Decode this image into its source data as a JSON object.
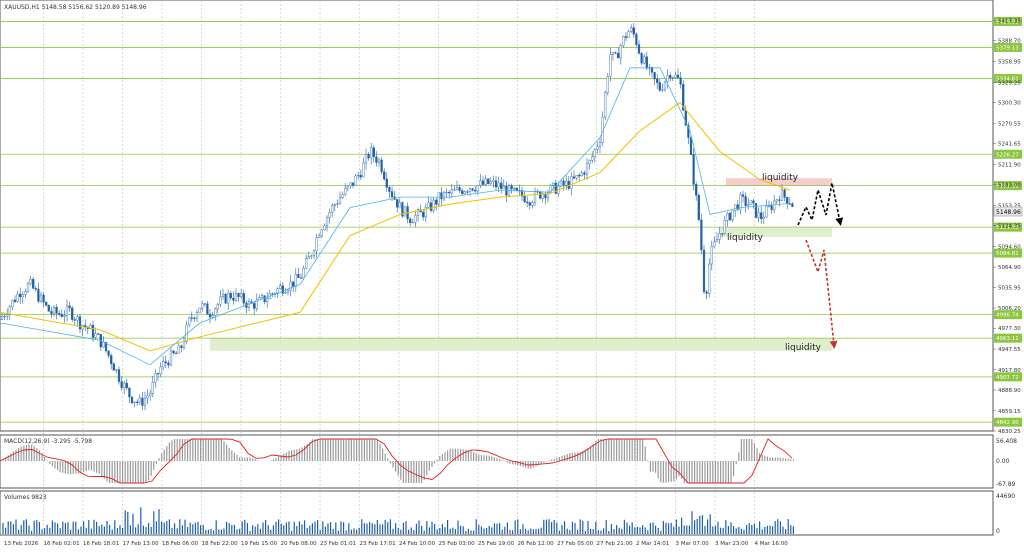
{
  "symbol_header": "XAUUSD,H1  5148.58 5156.62 5120.89 5148.96",
  "current_price_label": "5148.96",
  "annotations": {
    "liquidity_top": "liquidity",
    "liquidity_mid": "liquidity",
    "liquidity_bottom": "liquidity"
  },
  "macd": {
    "header": "MACD(12,26,9) -3.295 -5.798",
    "scale_labels": [
      "56.408",
      "0.00",
      "-67.89"
    ]
  },
  "volumes": {
    "header": "Volumes 9823",
    "scale_labels": [
      "44690",
      "0"
    ]
  },
  "colors": {
    "bull_candle": "#1f5fa8",
    "bear_candle": "#1f5fa8",
    "ma_fast": "#4fb3e8",
    "ma_slow": "#f0c000",
    "level_line": "#8cc63f",
    "level_zone": "#d9ecc4",
    "resistance_zone": "#f2c4c4",
    "macd_signal": "#e02020",
    "macd_hist": "#9a9a9a",
    "volume_bars": "#1f5fa8",
    "arrow_black": "#000000",
    "arrow_red": "#c0392b"
  },
  "chart_data": [
    {
      "type": "candlestick",
      "title": "",
      "x_tick_labels": [
        "13 Feb 2026",
        "16 Feb 02:01",
        "16 Feb 18:01",
        "17 Feb 13:00",
        "18 Feb 06:00",
        "18 Feb 22:00",
        "19 Feb 15:00",
        "20 Feb 08:00",
        "23 Feb 01:01",
        "23 Feb 17:01",
        "24 Feb 10:00",
        "25 Feb 03:00",
        "25 Feb 19:00",
        "26 Feb 12:00",
        "27 Feb 05:00",
        "27 Feb 21:00",
        "2 Mar 14:01",
        "3 Mar 07:00",
        "3 Mar 23:00",
        "4 Mar 16:00"
      ],
      "y_tick_labels": [
        "5417.35",
        "5388.70",
        "5358.95",
        "5329.25",
        "5300.30",
        "5270.55",
        "5241.65",
        "5211.90",
        "5183.00",
        "5153.25",
        "5124.35",
        "5094.60",
        "5064.90",
        "5035.95",
        "5006.20",
        "4977.30",
        "4947.55",
        "4917.80",
        "4888.90",
        "4859.15",
        "4830.25"
      ],
      "ylim": [
        4830.25,
        5447.0
      ],
      "horizontal_levels": [
        5416.33,
        5379.13,
        5334.61,
        5226.27,
        5181.38,
        5121.98,
        5084.81,
        4996.74,
        4963.11,
        4907.72,
        4842.9
      ],
      "horizontal_level_labels": [
        "5416.33",
        "5379.13",
        "5334.61",
        "5226.27",
        "5181.38",
        "5121.98",
        "5084.81",
        "4996.74",
        "4963.11",
        "4907.72",
        "4842.90"
      ],
      "zones": [
        {
          "label": "liquidity",
          "low": 5181.38,
          "high": 5192.0,
          "kind": "resistance"
        },
        {
          "label": "liquidity",
          "low": 5108.0,
          "high": 5121.98,
          "kind": "support"
        },
        {
          "label": "liquidity",
          "low": 4945.0,
          "high": 4963.11,
          "kind": "support"
        }
      ],
      "close_path": [
        [
          0,
          4990
        ],
        [
          10,
          5010
        ],
        [
          20,
          5030
        ],
        [
          30,
          5040
        ],
        [
          40,
          5020
        ],
        [
          50,
          5000
        ],
        [
          60,
          4998
        ],
        [
          70,
          5002
        ],
        [
          80,
          4985
        ],
        [
          90,
          4975
        ],
        [
          100,
          4960
        ],
        [
          110,
          4935
        ],
        [
          120,
          4905
        ],
        [
          130,
          4880
        ],
        [
          140,
          4870
        ],
        [
          150,
          4885
        ],
        [
          160,
          4920
        ],
        [
          170,
          4935
        ],
        [
          180,
          4945
        ],
        [
          190,
          4990
        ],
        [
          200,
          5010
        ],
        [
          210,
          5000
        ],
        [
          220,
          5015
        ],
        [
          230,
          5025
        ],
        [
          240,
          5020
        ],
        [
          250,
          5010
        ],
        [
          260,
          5015
        ],
        [
          270,
          5025
        ],
        [
          280,
          5035
        ],
        [
          290,
          5040
        ],
        [
          300,
          5050
        ],
        [
          310,
          5080
        ],
        [
          320,
          5120
        ],
        [
          330,
          5145
        ],
        [
          340,
          5165
        ],
        [
          350,
          5180
        ],
        [
          360,
          5200
        ],
        [
          370,
          5230
        ],
        [
          380,
          5215
        ],
        [
          390,
          5175
        ],
        [
          400,
          5150
        ],
        [
          410,
          5135
        ],
        [
          420,
          5140
        ],
        [
          430,
          5150
        ],
        [
          440,
          5165
        ],
        [
          450,
          5170
        ],
        [
          460,
          5175
        ],
        [
          470,
          5180
        ],
        [
          480,
          5182
        ],
        [
          490,
          5185
        ],
        [
          500,
          5180
        ],
        [
          510,
          5172
        ],
        [
          520,
          5168
        ],
        [
          530,
          5162
        ],
        [
          540,
          5170
        ],
        [
          550,
          5175
        ],
        [
          560,
          5180
        ],
        [
          570,
          5185
        ],
        [
          580,
          5195
        ],
        [
          590,
          5215
        ],
        [
          600,
          5250
        ],
        [
          605,
          5310
        ],
        [
          610,
          5370
        ],
        [
          615,
          5360
        ],
        [
          620,
          5380
        ],
        [
          625,
          5395
        ],
        [
          630,
          5405
        ],
        [
          635,
          5395
        ],
        [
          640,
          5370
        ],
        [
          650,
          5340
        ],
        [
          660,
          5320
        ],
        [
          670,
          5345
        ],
        [
          680,
          5330
        ],
        [
          690,
          5230
        ],
        [
          700,
          5120
        ],
        [
          705,
          5015
        ],
        [
          710,
          5080
        ],
        [
          720,
          5115
        ],
        [
          730,
          5140
        ],
        [
          740,
          5160
        ],
        [
          750,
          5155
        ],
        [
          760,
          5135
        ],
        [
          770,
          5150
        ],
        [
          780,
          5170
        ],
        [
          790,
          5160
        ],
        [
          795,
          5148.96
        ]
      ],
      "ma_fast_path": [
        [
          0,
          4985
        ],
        [
          100,
          4960
        ],
        [
          150,
          4925
        ],
        [
          200,
          4985
        ],
        [
          300,
          5040
        ],
        [
          350,
          5150
        ],
        [
          400,
          5165
        ],
        [
          450,
          5165
        ],
        [
          500,
          5175
        ],
        [
          550,
          5172
        ],
        [
          600,
          5250
        ],
        [
          630,
          5350
        ],
        [
          660,
          5350
        ],
        [
          690,
          5260
        ],
        [
          710,
          5140
        ],
        [
          740,
          5150
        ],
        [
          790,
          5156
        ]
      ],
      "ma_slow_path": [
        [
          0,
          5000
        ],
        [
          100,
          4975
        ],
        [
          150,
          4945
        ],
        [
          200,
          4965
        ],
        [
          300,
          5000
        ],
        [
          350,
          5110
        ],
        [
          400,
          5140
        ],
        [
          450,
          5155
        ],
        [
          500,
          5165
        ],
        [
          550,
          5170
        ],
        [
          600,
          5200
        ],
        [
          640,
          5260
        ],
        [
          680,
          5300
        ],
        [
          720,
          5230
        ],
        [
          760,
          5190
        ],
        [
          790,
          5175
        ]
      ]
    }
  ]
}
